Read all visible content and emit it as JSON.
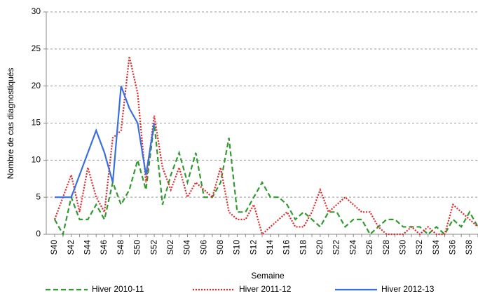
{
  "chart_data": {
    "type": "line",
    "x_label": "Semaine",
    "y_label": "Nombre de cas diagnostiqués",
    "categories": [
      "S40",
      null,
      "S42",
      null,
      "S44",
      null,
      "S46",
      null,
      "S48",
      null,
      "S50",
      null,
      "S52",
      null,
      "S02",
      null,
      "S04",
      null,
      "S06",
      null,
      "S08",
      null,
      "S10",
      null,
      "S12",
      null,
      "S14",
      null,
      "S16",
      null,
      "S18",
      null,
      "S20",
      null,
      "S22",
      null,
      "S24",
      null,
      "S26",
      null,
      "S28",
      null,
      "S30",
      null,
      "S32",
      null,
      "S34",
      null,
      "S36",
      null,
      "S38",
      null
    ],
    "series": [
      {
        "name": "Hiver 2010-11",
        "color": "#339933",
        "dash": "dashed",
        "values": [
          2,
          0,
          5,
          2,
          2,
          4,
          2,
          7,
          4,
          6,
          10,
          6,
          15,
          4,
          8,
          11,
          7,
          11,
          5,
          5,
          7,
          13,
          3,
          3,
          5,
          7,
          5,
          5,
          4,
          2,
          3,
          2,
          1,
          3,
          3,
          1,
          2,
          2,
          0,
          1,
          2,
          2,
          1,
          1,
          1,
          0,
          1,
          0,
          2,
          1,
          3,
          1
        ]
      },
      {
        "name": "Hiver 2011-12",
        "color": "#e8262a",
        "dash": "dotted",
        "values": [
          2,
          5,
          8,
          3,
          9,
          5,
          3,
          13,
          14,
          24,
          19,
          7,
          16,
          9,
          6,
          9,
          5,
          7,
          6,
          5,
          9,
          3,
          2,
          2,
          4,
          0,
          1,
          2,
          3,
          1,
          1,
          3,
          6,
          3,
          4,
          5,
          4,
          3,
          3,
          1,
          0,
          0,
          0,
          1,
          0,
          1,
          0,
          0,
          4,
          3,
          2,
          1
        ]
      },
      {
        "name": "Hiver 2012-13",
        "color": "#3a6fe0",
        "dash": "solid",
        "values": [
          5,
          5,
          5,
          8,
          11,
          14,
          11,
          7,
          20,
          17,
          15,
          8,
          15,
          null,
          null,
          null,
          null,
          null,
          null,
          null,
          null,
          null,
          null,
          null,
          null,
          null,
          null,
          null,
          null,
          null,
          null,
          null,
          null,
          null,
          null,
          null,
          null,
          null,
          null,
          null,
          null,
          null,
          null,
          null,
          null,
          null,
          null,
          null,
          null,
          null,
          null,
          null
        ]
      }
    ],
    "ylim": [
      0,
      30
    ],
    "yticks": [
      0,
      5,
      10,
      15,
      20,
      25,
      30
    ],
    "grid": true,
    "legend": "bottom"
  }
}
